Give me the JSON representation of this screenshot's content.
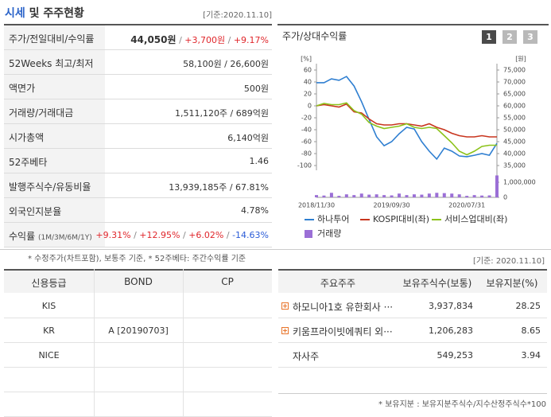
{
  "header": {
    "title": [
      "시세",
      "및 주주현황"
    ],
    "date": "[기준:2020.11.10]"
  },
  "price_table": {
    "rows": [
      {
        "label": "주가/전일대비/수익률",
        "value": [
          "44,050원",
          "/",
          "+3,700원",
          "/",
          "+9.17%"
        ]
      },
      {
        "label": "52Weeks 최고/최저",
        "value": [
          "58,100원 / 26,600원"
        ]
      },
      {
        "label": "액면가",
        "value": [
          "500원"
        ]
      },
      {
        "label": "거래량/거래대금",
        "value": [
          "1,511,120주 / 689억원"
        ]
      },
      {
        "label": "시가총액",
        "value": [
          "6,140억원"
        ]
      },
      {
        "label": "52주베타",
        "value": [
          "1.46"
        ]
      },
      {
        "label": "발행주식수/유동비율",
        "value": [
          "13,939,185주 / 67.81%"
        ]
      },
      {
        "label": "외국인지분율",
        "value": [
          "4.78%"
        ]
      },
      {
        "label": "수익률",
        "label_note": "(1M/3M/6M/1Y)",
        "value": [
          "+9.31%",
          "/",
          "+12.95%",
          "/",
          "+6.02%",
          "/",
          "-14.63%"
        ]
      }
    ],
    "note": "* 수정주가(차트포함), 보통주 기준, * 52주베타: 주간수익률 기준"
  },
  "chart_data": {
    "type": "line",
    "title": "주가/상대수익률",
    "buttons": [
      "1",
      "2",
      "3"
    ],
    "ylabel": "[%]",
    "y2label": "[원]",
    "categories": [
      "2018/11/30",
      null,
      null,
      null,
      null,
      null,
      null,
      null,
      null,
      null,
      "2019/09/30",
      null,
      null,
      null,
      null,
      null,
      null,
      null,
      null,
      null,
      "2020/07/31",
      null,
      null,
      null,
      null
    ],
    "series": [
      {
        "name": "하나투어",
        "color": "#2f7fd1",
        "axis": "y2",
        "values": [
          69700,
          69700,
          71300,
          70700,
          72300,
          68300,
          61700,
          54300,
          47000,
          43300,
          45000,
          48300,
          51000,
          50300,
          45000,
          41000,
          37700,
          42300,
          41000,
          39000,
          38700,
          39300,
          40000,
          39300,
          44300
        ]
      },
      {
        "name": "KOSPI대비(좌)",
        "color": "#c8351e",
        "values": [
          0,
          2,
          0,
          -2,
          3,
          -10,
          -12,
          -22,
          -30,
          -32,
          -32,
          -30,
          -30,
          -32,
          -34,
          -30,
          -36,
          -40,
          -46,
          -50,
          -52,
          -52,
          -50,
          -52,
          -52
        ]
      },
      {
        "name": "서비스업대비(좌)",
        "color": "#8cc21a",
        "values": [
          0,
          4,
          2,
          2,
          5,
          -8,
          -14,
          -28,
          -34,
          -38,
          -36,
          -34,
          -30,
          -36,
          -38,
          -36,
          -38,
          -50,
          -62,
          -76,
          -82,
          -76,
          -68,
          -66,
          -66
        ]
      },
      {
        "name": "거래량",
        "color": "#9b6fd6",
        "axis": "y3",
        "type": "bar",
        "values": [
          150000,
          120000,
          300000,
          100000,
          200000,
          150000,
          250000,
          180000,
          200000,
          150000,
          130000,
          250000,
          150000,
          200000,
          180000,
          250000,
          300000,
          280000,
          250000,
          200000,
          100000,
          150000,
          120000,
          130000,
          1450000
        ]
      }
    ],
    "ylim": [
      -100,
      60
    ],
    "yticks": [
      60,
      40,
      20,
      0,
      -20,
      -40,
      -60,
      -80,
      -100
    ],
    "y2lim": [
      35000,
      75000
    ],
    "y2ticks": [
      {
        "value": 75000,
        "label": "75,000"
      },
      {
        "value": 70000,
        "label": "70,000"
      },
      {
        "value": 65000,
        "label": "65,000"
      },
      {
        "value": 60000,
        "label": "60,000"
      },
      {
        "value": 55000,
        "label": "55,000"
      },
      {
        "value": 50000,
        "label": "50,000"
      },
      {
        "value": 45000,
        "label": "45,000"
      },
      {
        "value": 40000,
        "label": "40,000"
      },
      {
        "value": 35000,
        "label": "35,000"
      }
    ],
    "y3lim": [
      0,
      1000000
    ],
    "y3ticks": [
      {
        "value": 1000000,
        "label": "1,000,000"
      },
      0
    ],
    "grid": false
  },
  "credit_table": {
    "headers": [
      "신용등급",
      "BOND",
      "CP"
    ],
    "rows": [
      [
        "KIS"
      ],
      [
        "KR",
        "A [20190703]"
      ],
      [
        "NICE"
      ]
    ]
  },
  "shareholder_table": {
    "date": "[기준: 2020.11.10]",
    "headers": [
      "주요주주",
      "보유주식수(보통)",
      "보유지분(%)"
    ],
    "rows": [
      {
        "name": "하모니아1호 유한회사 ···",
        "shares": "3,937,834",
        "ratio": "28.25",
        "expandable": true
      },
      {
        "name": "키움프라이빗에쿼티 외···",
        "shares": "1,206,283",
        "ratio": "8.65",
        "expandable": true
      },
      {
        "name": "자사주",
        "shares": "549,253",
        "ratio": "3.94"
      }
    ],
    "note": "* 보유지분 : 보유지분주식수/지수산정주식수*100"
  }
}
